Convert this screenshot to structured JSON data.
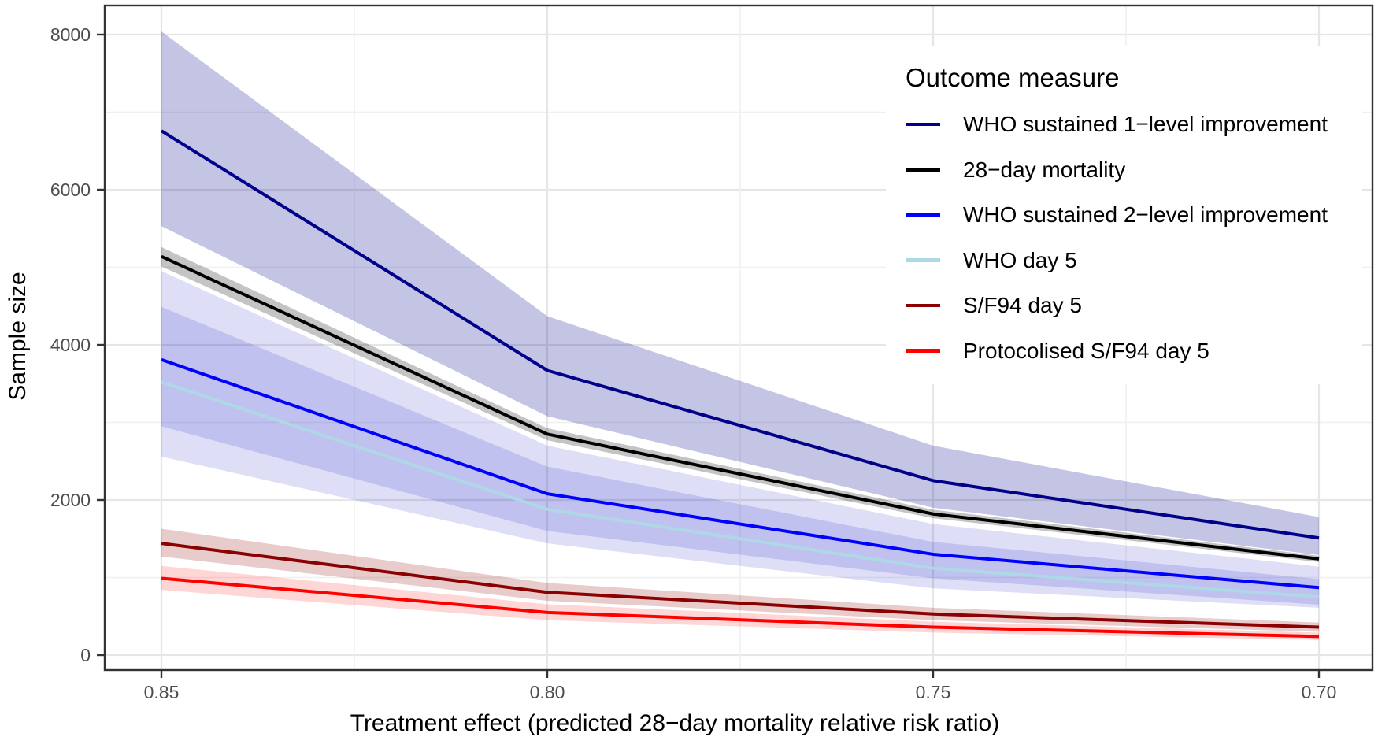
{
  "figure": {
    "x_axis_title": "Treatment effect (predicted 28−day mortality relative risk ratio)",
    "y_axis_title": "Sample size"
  },
  "legend": {
    "title": "Outcome measure",
    "position": "inside top-right",
    "background": "#ffffff"
  },
  "colors": {
    "panel_border": "#333333",
    "grid_major": "#e6e6e6",
    "grid_minor": "#f0f0f0",
    "tick_mark": "#333333",
    "tick_label": "#4d4d4d",
    "axis_title": "#000000"
  },
  "chart_data": {
    "type": "line",
    "title": "",
    "xlabel": "Treatment effect (predicted 28−day mortality relative risk ratio)",
    "ylabel": "Sample size",
    "x": [
      0.85,
      0.8,
      0.75,
      0.7
    ],
    "x_tick_labels": [
      "0.85",
      "0.80",
      "0.75",
      "0.70"
    ],
    "x_axis_reversed": true,
    "y_ticks": [
      0,
      2000,
      4000,
      6000,
      8000
    ],
    "y_tick_labels": [
      "0",
      "2000",
      "4000",
      "6000",
      "8000"
    ],
    "y_minor_ticks": [
      1000,
      3000,
      5000,
      7000
    ],
    "ylim": [
      0,
      8400
    ],
    "grid": "on",
    "legend_title": "Outcome measure",
    "legend_position": "inside top-right",
    "bands_are": "confidence ribbons around each line",
    "series": [
      {
        "name": "WHO sustained 1−level improvement",
        "color": "#00008B",
        "values": [
          6760,
          3670,
          2250,
          1510
        ],
        "band_lower": [
          5530,
          3080,
          1900,
          1290
        ],
        "band_upper": [
          8040,
          4370,
          2700,
          1780
        ],
        "band_fill": "rgba(0,0,139,0.23)"
      },
      {
        "name": "28−day mortality",
        "color": "#000000",
        "values": [
          5140,
          2850,
          1820,
          1240
        ],
        "band_lower": [
          5010,
          2770,
          1765,
          1200
        ],
        "band_upper": [
          5260,
          2925,
          1875,
          1280
        ],
        "band_fill": "rgba(0,0,0,0.23)"
      },
      {
        "name": "WHO sustained 2−level improvement",
        "color": "#0000FF",
        "values": [
          3810,
          2080,
          1300,
          870
        ],
        "band_lower": [
          2950,
          1600,
          990,
          650
        ],
        "band_upper": [
          4950,
          2700,
          1690,
          1140
        ],
        "band_fill": "rgba(0,0,195,0.13)"
      },
      {
        "name": "WHO day 5",
        "color": "#ADD8E6",
        "values": [
          3520,
          1880,
          1120,
          750
        ],
        "band_lower": [
          2560,
          1440,
          860,
          610
        ],
        "band_upper": [
          4490,
          2430,
          1460,
          980
        ],
        "band_fill": "rgba(0,0,195,0.13)"
      },
      {
        "name": "S/F94 day 5",
        "color": "#8B0000",
        "values": [
          1440,
          810,
          530,
          360
        ],
        "band_lower": [
          1270,
          700,
          450,
          300
        ],
        "band_upper": [
          1630,
          930,
          610,
          420
        ],
        "band_fill": "rgba(139,0,0,0.20)"
      },
      {
        "name": "Protocolised S/F94 day 5",
        "color": "#FF0000",
        "values": [
          990,
          550,
          360,
          240
        ],
        "band_lower": [
          840,
          450,
          290,
          195
        ],
        "band_upper": [
          1150,
          655,
          430,
          290
        ],
        "band_fill": "rgba(255,0,0,0.16)"
      }
    ]
  }
}
